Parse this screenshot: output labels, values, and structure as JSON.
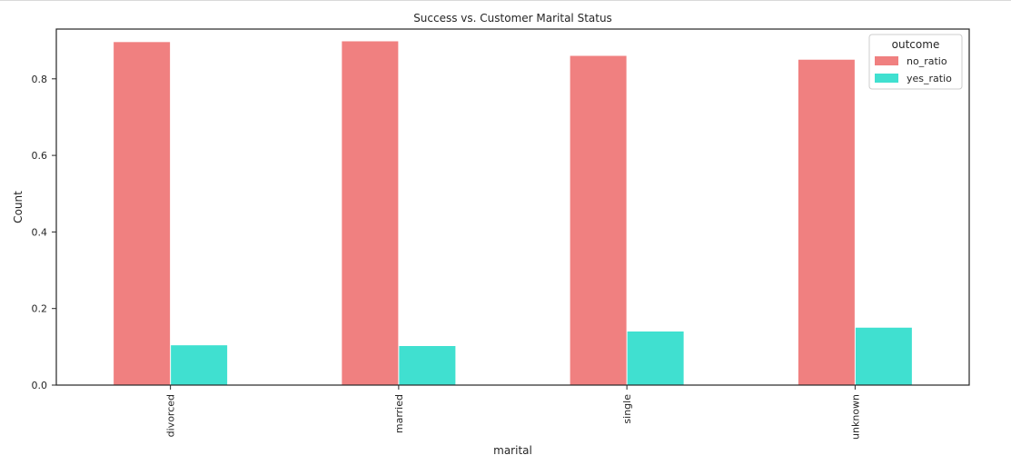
{
  "chart_data": {
    "type": "bar",
    "title": "Success vs. Customer Marital Status",
    "xlabel": "marital",
    "ylabel": "Count",
    "categories": [
      "divorced",
      "married",
      "single",
      "unknown"
    ],
    "series": [
      {
        "name": "no_ratio",
        "color": "#f08080",
        "values": [
          0.896,
          0.898,
          0.86,
          0.85
        ]
      },
      {
        "name": "yes_ratio",
        "color": "#40e0d0",
        "values": [
          0.104,
          0.102,
          0.14,
          0.15
        ]
      }
    ],
    "ylim": [
      0,
      0.93
    ],
    "yticks": [
      "0.0",
      "0.2",
      "0.4",
      "0.6",
      "0.8"
    ],
    "grid": false,
    "legend": {
      "title": "outcome",
      "placement": "top-right"
    }
  }
}
